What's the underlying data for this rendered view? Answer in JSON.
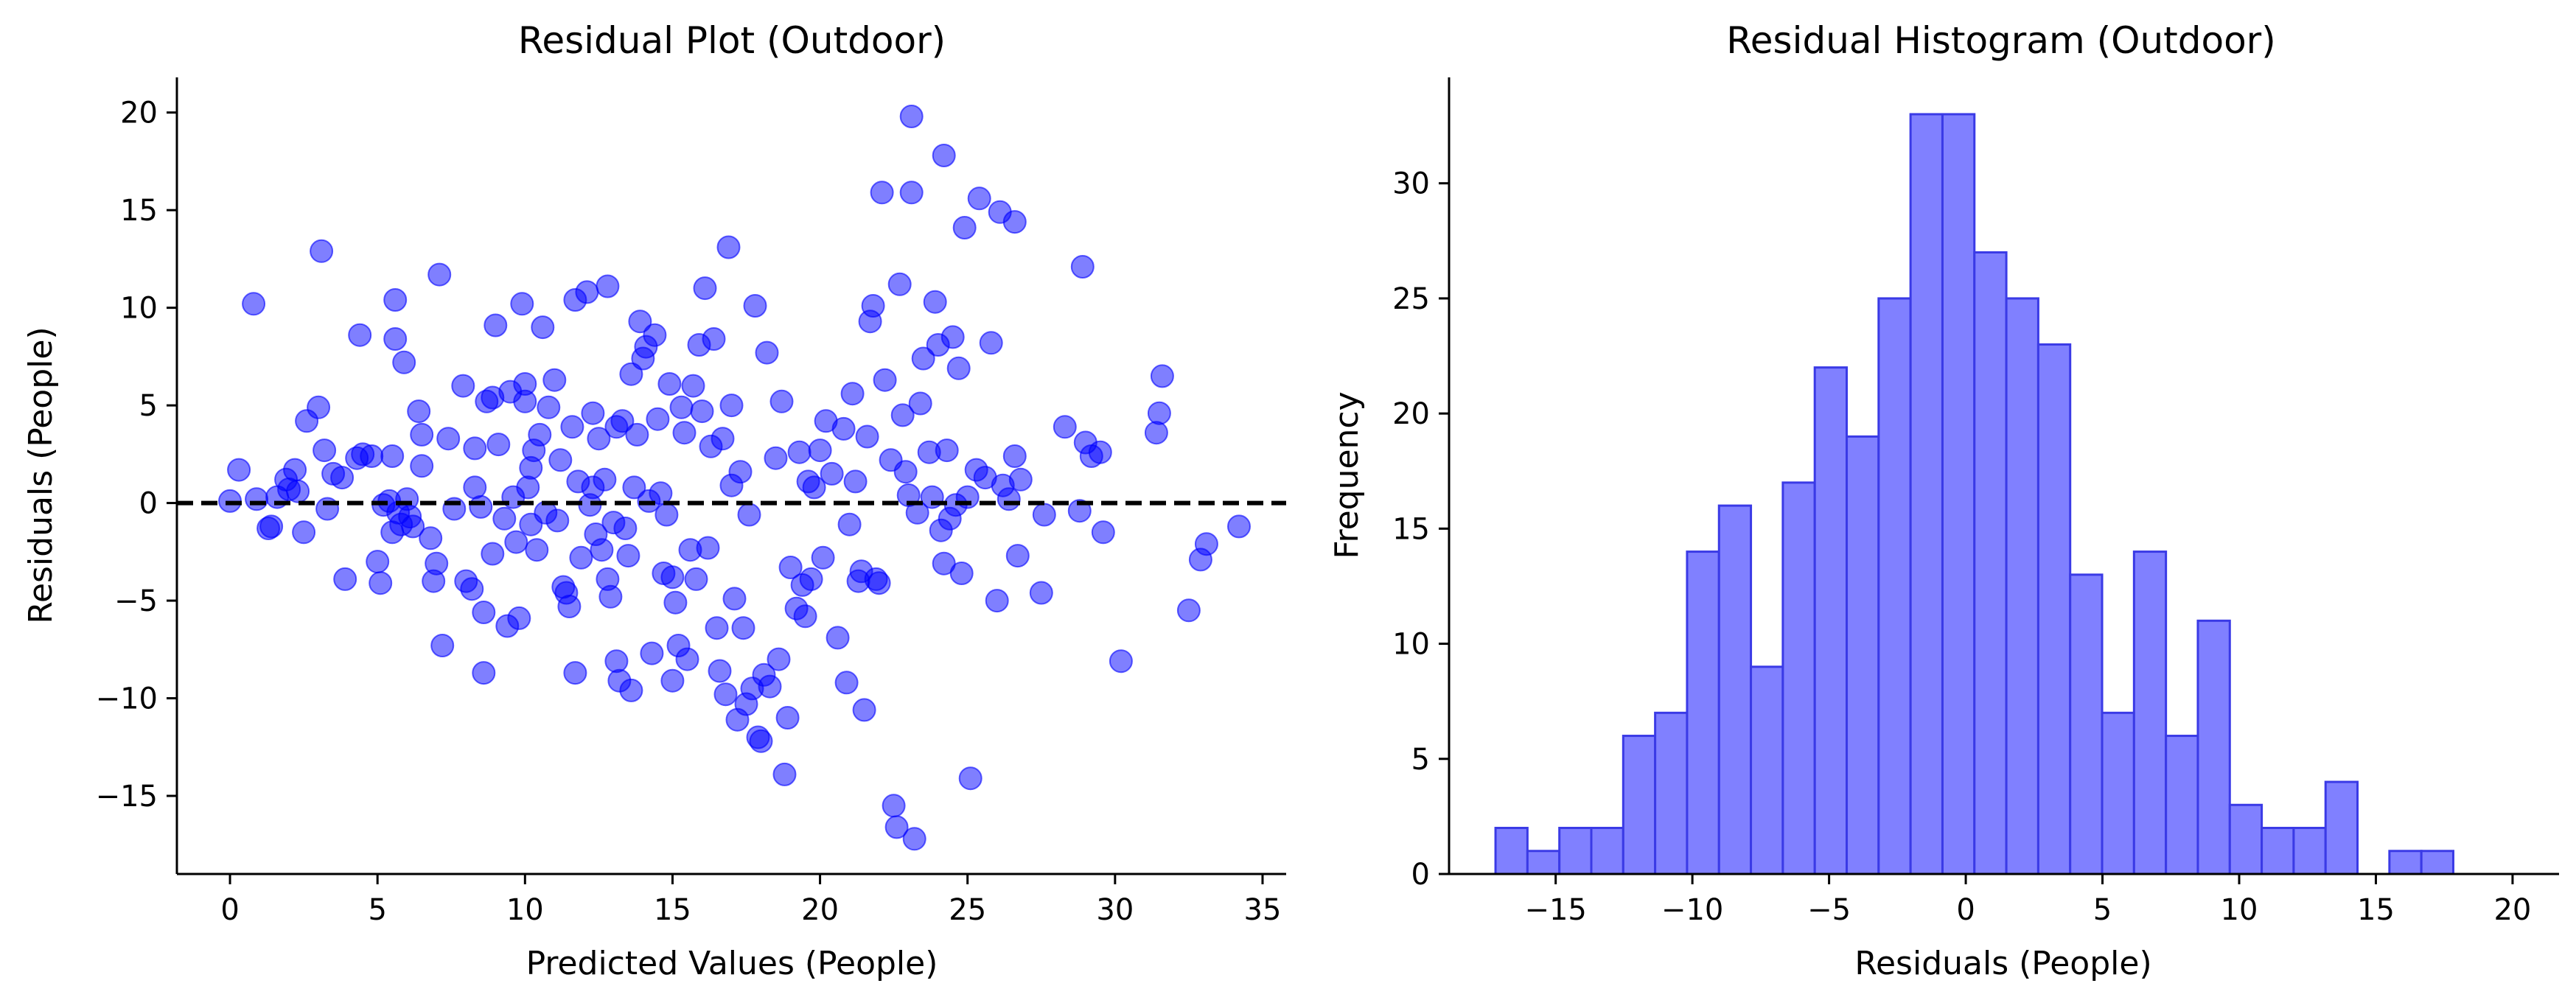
{
  "chart_data": [
    {
      "type": "scatter",
      "title": "Residual Plot (Outdoor)",
      "xlabel": "Predicted Values (People)",
      "ylabel": "Residuals (People)",
      "xlim": [
        -1.8,
        35.8
      ],
      "ylim": [
        -19,
        21.8
      ],
      "xticks": [
        0,
        5,
        10,
        15,
        20,
        25,
        30,
        35
      ],
      "yticks": [
        -15,
        -10,
        -5,
        0,
        5,
        10,
        15,
        20
      ],
      "reference_line": {
        "y": 0,
        "style": "dashed",
        "color": "#000000"
      },
      "color": "#0000ff",
      "points": [
        [
          0.0,
          0.1
        ],
        [
          0.3,
          1.7
        ],
        [
          0.8,
          10.2
        ],
        [
          0.9,
          0.2
        ],
        [
          1.3,
          -1.3
        ],
        [
          1.4,
          -1.2
        ],
        [
          1.6,
          0.3
        ],
        [
          1.9,
          1.2
        ],
        [
          2.2,
          1.7
        ],
        [
          2.3,
          0.6
        ],
        [
          2.5,
          -1.5
        ],
        [
          2.6,
          4.2
        ],
        [
          3.0,
          4.9
        ],
        [
          3.1,
          12.9
        ],
        [
          3.2,
          2.7
        ],
        [
          3.3,
          -0.3
        ],
        [
          3.5,
          1.5
        ],
        [
          3.8,
          1.3
        ],
        [
          3.9,
          -3.9
        ],
        [
          4.3,
          2.3
        ],
        [
          4.4,
          8.6
        ],
        [
          4.5,
          2.5
        ],
        [
          4.8,
          2.4
        ],
        [
          5.0,
          -3.0
        ],
        [
          5.1,
          -4.1
        ],
        [
          5.2,
          -0.1
        ],
        [
          5.4,
          0.1
        ],
        [
          5.5,
          -1.5
        ],
        [
          5.5,
          2.4
        ],
        [
          5.6,
          8.4
        ],
        [
          5.6,
          10.4
        ],
        [
          5.7,
          -0.5
        ],
        [
          5.8,
          -1.1
        ],
        [
          5.9,
          7.2
        ],
        [
          6.0,
          0.2
        ],
        [
          6.1,
          -0.7
        ],
        [
          6.2,
          -1.2
        ],
        [
          6.4,
          4.7
        ],
        [
          6.5,
          3.5
        ],
        [
          6.8,
          -1.8
        ],
        [
          6.9,
          -4.0
        ],
        [
          7.0,
          -3.1
        ],
        [
          7.1,
          11.7
        ],
        [
          7.2,
          -7.3
        ],
        [
          7.4,
          3.3
        ],
        [
          7.6,
          -0.3
        ],
        [
          7.9,
          6.0
        ],
        [
          8.0,
          -4.0
        ],
        [
          8.2,
          -4.4
        ],
        [
          8.3,
          0.8
        ],
        [
          8.3,
          2.8
        ],
        [
          8.5,
          -0.2
        ],
        [
          8.6,
          -5.6
        ],
        [
          8.6,
          -8.7
        ],
        [
          8.7,
          5.2
        ],
        [
          8.9,
          5.4
        ],
        [
          8.9,
          -2.6
        ],
        [
          9.0,
          9.1
        ],
        [
          9.1,
          3.0
        ],
        [
          9.3,
          -0.8
        ],
        [
          9.4,
          -6.3
        ],
        [
          9.5,
          5.7
        ],
        [
          9.7,
          -2.0
        ],
        [
          9.8,
          -5.9
        ],
        [
          9.9,
          10.2
        ],
        [
          10.0,
          5.2
        ],
        [
          10.0,
          6.1
        ],
        [
          10.1,
          0.8
        ],
        [
          10.2,
          -1.1
        ],
        [
          10.2,
          1.8
        ],
        [
          10.3,
          2.7
        ],
        [
          10.4,
          -2.4
        ],
        [
          10.5,
          3.5
        ],
        [
          10.6,
          9.0
        ],
        [
          10.7,
          -0.5
        ],
        [
          10.8,
          4.9
        ],
        [
          11.0,
          6.3
        ],
        [
          11.1,
          -0.9
        ],
        [
          11.2,
          2.2
        ],
        [
          11.3,
          -4.3
        ],
        [
          11.4,
          -4.6
        ],
        [
          11.5,
          -5.3
        ],
        [
          11.6,
          3.9
        ],
        [
          11.7,
          10.4
        ],
        [
          11.7,
          -8.7
        ],
        [
          11.8,
          1.1
        ],
        [
          11.9,
          -2.8
        ],
        [
          12.1,
          10.8
        ],
        [
          12.2,
          -0.1
        ],
        [
          12.3,
          0.8
        ],
        [
          12.3,
          4.6
        ],
        [
          12.4,
          -1.6
        ],
        [
          12.5,
          3.3
        ],
        [
          12.6,
          -2.4
        ],
        [
          12.7,
          1.2
        ],
        [
          12.8,
          -3.9
        ],
        [
          12.8,
          11.1
        ],
        [
          12.9,
          -4.8
        ],
        [
          13.0,
          -1.0
        ],
        [
          13.1,
          3.9
        ],
        [
          13.1,
          -8.1
        ],
        [
          13.2,
          -9.1
        ],
        [
          13.3,
          4.2
        ],
        [
          13.4,
          -1.3
        ],
        [
          13.5,
          -2.7
        ],
        [
          13.6,
          -9.6
        ],
        [
          13.7,
          0.8
        ],
        [
          13.8,
          3.5
        ],
        [
          13.9,
          9.3
        ],
        [
          14.0,
          7.4
        ],
        [
          14.1,
          8.0
        ],
        [
          14.2,
          0.1
        ],
        [
          14.3,
          -7.7
        ],
        [
          14.4,
          8.6
        ],
        [
          14.5,
          4.3
        ],
        [
          14.6,
          0.5
        ],
        [
          14.7,
          -3.6
        ],
        [
          14.8,
          -0.6
        ],
        [
          14.9,
          6.1
        ],
        [
          15.0,
          -3.8
        ],
        [
          15.0,
          -9.1
        ],
        [
          15.1,
          -5.1
        ],
        [
          15.2,
          -7.3
        ],
        [
          15.3,
          4.9
        ],
        [
          15.4,
          3.6
        ],
        [
          15.5,
          -8.0
        ],
        [
          15.6,
          -2.4
        ],
        [
          15.7,
          6.0
        ],
        [
          15.8,
          -3.9
        ],
        [
          15.9,
          8.1
        ],
        [
          16.0,
          4.7
        ],
        [
          16.1,
          11.0
        ],
        [
          16.2,
          -2.3
        ],
        [
          16.3,
          2.9
        ],
        [
          16.4,
          8.4
        ],
        [
          16.5,
          -6.4
        ],
        [
          16.6,
          -8.6
        ],
        [
          16.7,
          3.3
        ],
        [
          16.8,
          -9.8
        ],
        [
          16.9,
          13.1
        ],
        [
          17.0,
          5.0
        ],
        [
          17.1,
          -4.9
        ],
        [
          17.2,
          -11.1
        ],
        [
          17.3,
          1.6
        ],
        [
          17.4,
          -6.4
        ],
        [
          17.5,
          -10.3
        ],
        [
          17.6,
          -0.6
        ],
        [
          17.7,
          -9.5
        ],
        [
          17.8,
          10.1
        ],
        [
          17.9,
          -12.0
        ],
        [
          18.0,
          -12.2
        ],
        [
          18.1,
          -8.8
        ],
        [
          18.2,
          7.7
        ],
        [
          18.3,
          -9.4
        ],
        [
          18.5,
          2.3
        ],
        [
          18.6,
          -8.0
        ],
        [
          18.7,
          5.2
        ],
        [
          18.8,
          -13.9
        ],
        [
          18.9,
          -11.0
        ],
        [
          19.0,
          -3.3
        ],
        [
          19.2,
          -5.4
        ],
        [
          19.3,
          2.6
        ],
        [
          19.4,
          -4.2
        ],
        [
          19.5,
          -5.8
        ],
        [
          19.6,
          1.1
        ],
        [
          19.7,
          -3.9
        ],
        [
          19.8,
          0.8
        ],
        [
          20.0,
          2.7
        ],
        [
          20.1,
          -2.8
        ],
        [
          20.2,
          4.2
        ],
        [
          20.4,
          1.5
        ],
        [
          20.6,
          -6.9
        ],
        [
          20.8,
          3.8
        ],
        [
          20.9,
          -9.2
        ],
        [
          21.0,
          -1.1
        ],
        [
          21.1,
          5.6
        ],
        [
          21.3,
          -4.0
        ],
        [
          21.4,
          -3.5
        ],
        [
          21.5,
          -10.6
        ],
        [
          21.6,
          3.4
        ],
        [
          21.7,
          9.3
        ],
        [
          21.8,
          10.1
        ],
        [
          21.9,
          -3.9
        ],
        [
          22.0,
          -4.1
        ],
        [
          22.1,
          15.9
        ],
        [
          22.2,
          6.3
        ],
        [
          22.4,
          2.2
        ],
        [
          22.5,
          -15.5
        ],
        [
          22.6,
          -16.6
        ],
        [
          22.7,
          11.2
        ],
        [
          22.8,
          4.5
        ],
        [
          22.9,
          1.6
        ],
        [
          23.0,
          0.4
        ],
        [
          23.1,
          19.8
        ],
        [
          23.1,
          15.9
        ],
        [
          23.2,
          -17.2
        ],
        [
          23.3,
          -0.5
        ],
        [
          23.4,
          5.1
        ],
        [
          23.5,
          7.4
        ],
        [
          23.7,
          2.6
        ],
        [
          23.8,
          0.3
        ],
        [
          23.9,
          10.3
        ],
        [
          24.0,
          8.1
        ],
        [
          24.1,
          -1.4
        ],
        [
          24.2,
          17.8
        ],
        [
          24.2,
          -3.1
        ],
        [
          24.3,
          2.7
        ],
        [
          24.4,
          -0.8
        ],
        [
          24.5,
          8.5
        ],
        [
          24.6,
          -0.1
        ],
        [
          24.8,
          -3.6
        ],
        [
          24.9,
          14.1
        ],
        [
          25.0,
          0.3
        ],
        [
          25.1,
          -14.1
        ],
        [
          25.3,
          1.7
        ],
        [
          25.4,
          15.6
        ],
        [
          25.6,
          1.3
        ],
        [
          25.8,
          8.2
        ],
        [
          26.0,
          -5.0
        ],
        [
          26.1,
          14.9
        ],
        [
          26.2,
          0.9
        ],
        [
          26.4,
          0.2
        ],
        [
          26.6,
          14.4
        ],
        [
          26.6,
          2.4
        ],
        [
          26.7,
          -2.7
        ],
        [
          26.8,
          1.2
        ],
        [
          27.5,
          -4.6
        ],
        [
          27.6,
          -0.6
        ],
        [
          28.3,
          3.9
        ],
        [
          28.8,
          -0.4
        ],
        [
          28.9,
          12.1
        ],
        [
          29.0,
          3.1
        ],
        [
          29.2,
          2.4
        ],
        [
          29.5,
          2.6
        ],
        [
          29.6,
          -1.5
        ],
        [
          30.2,
          -8.1
        ],
        [
          31.4,
          3.6
        ],
        [
          31.5,
          4.6
        ],
        [
          31.6,
          6.5
        ],
        [
          32.5,
          -5.5
        ],
        [
          32.9,
          -2.9
        ],
        [
          33.1,
          -2.1
        ],
        [
          34.2,
          -1.2
        ],
        [
          2.0,
          0.7
        ],
        [
          6.5,
          1.9
        ],
        [
          9.6,
          0.3
        ],
        [
          13.6,
          6.6
        ],
        [
          17.0,
          0.9
        ],
        [
          21.2,
          1.1
        ],
        [
          24.7,
          6.9
        ]
      ]
    },
    {
      "type": "bar",
      "subtype": "histogram",
      "title": "Residual Histogram (Outdoor)",
      "xlabel": "Residuals (People)",
      "ylabel": "Frequency",
      "xlim": [
        -18.9,
        21.7
      ],
      "ylim": [
        0,
        34.6
      ],
      "xticks": [
        -15,
        -10,
        -5,
        0,
        5,
        10,
        15,
        20
      ],
      "xtick_labels": [
        "−15",
        "−10",
        "−5",
        "0",
        "5",
        "10",
        "15",
        "20"
      ],
      "yticks": [
        0,
        5,
        10,
        15,
        20,
        25,
        30
      ],
      "bin_start": -17.2,
      "bin_width": 1.1677,
      "values": [
        2,
        1,
        2,
        2,
        6,
        7,
        14,
        16,
        9,
        17,
        22,
        19,
        25,
        33,
        33,
        27,
        25,
        23,
        13,
        7,
        14,
        6,
        11,
        3,
        2,
        2,
        4,
        0,
        1,
        1
      ],
      "color": "#0000ff",
      "alpha": 0.5
    }
  ]
}
